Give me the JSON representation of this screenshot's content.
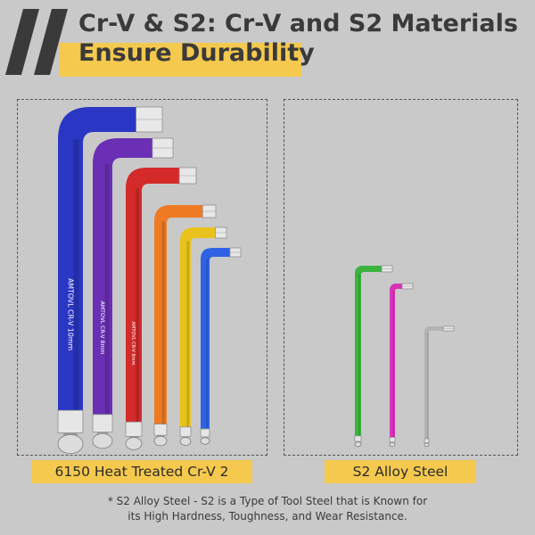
{
  "title": {
    "line1": "Cr-V & S2: Cr-V and S2 Materials",
    "line2": "Ensure Durability"
  },
  "left_panel": {
    "caption": "6150 Heat Treated Cr-V 2",
    "keys": [
      {
        "color": "#2a36c4",
        "engraving": "AMTOVL  CR-V  10mm"
      },
      {
        "color": "#6a2fb4",
        "engraving": "AMTOVL  CR-V  8mm"
      },
      {
        "color": "#d42a2a",
        "engraving": "AMTOVL  CR-V  6mm"
      },
      {
        "color": "#ee7a24",
        "engraving": ""
      },
      {
        "color": "#e9c21c",
        "engraving": ""
      },
      {
        "color": "#2f63e6",
        "engraving": ""
      }
    ]
  },
  "right_panel": {
    "caption": "S2 Alloy Steel",
    "keys": [
      {
        "color": "#3bb33e"
      },
      {
        "color": "#d833b7"
      },
      {
        "color": "#b3b3b3"
      }
    ]
  },
  "footnote": {
    "line1": "* S2 Alloy Steel - S2 is a Type of Tool Steel that is Known for",
    "line2": "its High Hardness, Toughness, and Wear Resistance."
  },
  "colors": {
    "accent": "#f5c94e",
    "background": "#c9c9c9",
    "text": "#3a3a3a"
  }
}
